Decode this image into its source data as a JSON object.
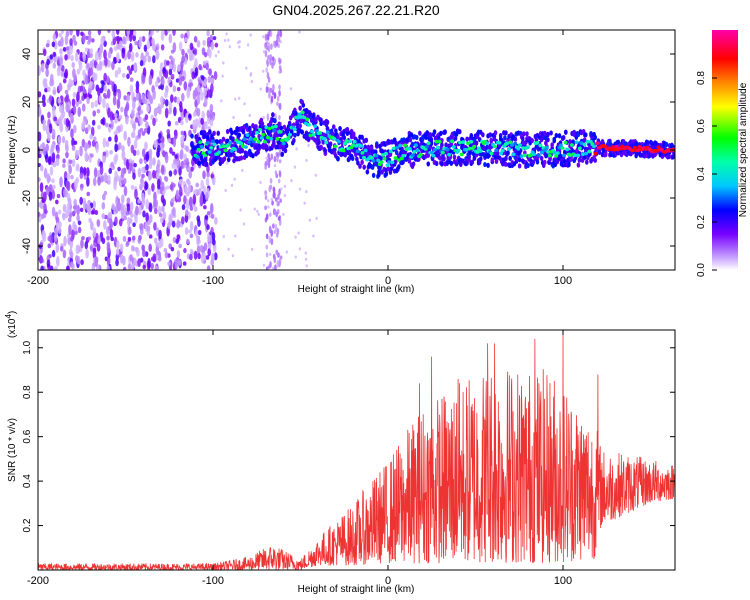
{
  "title": "GN04.2025.267.22.21.R20",
  "chart_data": [
    {
      "type": "heatmap",
      "name": "spectrogram",
      "xlabel": "Height of straight line (km)",
      "ylabel": "Frequency (Hz)",
      "xlim": [
        -200,
        164
      ],
      "ylim": [
        -50,
        50
      ],
      "xticks": [
        -200,
        -100,
        0,
        100
      ],
      "xtick_labels": [
        "-200",
        "-100",
        "0",
        "100"
      ],
      "yticks": [
        -40,
        -20,
        0,
        20,
        40
      ],
      "ytick_labels": [
        "-40",
        "-20",
        "0",
        "20",
        "40"
      ],
      "ridge": [
        {
          "x": -110,
          "f": 0
        },
        {
          "x": -90,
          "f": 2
        },
        {
          "x": -75,
          "f": 5
        },
        {
          "x": -65,
          "f": 8
        },
        {
          "x": -58,
          "f": 3
        },
        {
          "x": -50,
          "f": 15
        },
        {
          "x": -45,
          "f": 9
        },
        {
          "x": -35,
          "f": 5
        },
        {
          "x": -20,
          "f": 1
        },
        {
          "x": -5,
          "f": -5
        },
        {
          "x": 10,
          "f": 0
        },
        {
          "x": 40,
          "f": 1
        },
        {
          "x": 80,
          "f": 0
        },
        {
          "x": 120,
          "f": 1
        },
        {
          "x": 164,
          "f": 0
        }
      ],
      "colorbar": {
        "label": "Normalized spectral amplitude",
        "range": [
          0,
          1
        ],
        "ticks": [
          0.0,
          0.2,
          0.4,
          0.6,
          0.8
        ],
        "tick_labels": [
          "0.0",
          "0.2",
          "0.4",
          "0.6",
          "0.8"
        ]
      }
    },
    {
      "type": "line",
      "name": "snr",
      "xlabel": "Height of straight line (km)",
      "ylabel": "SNR (10 * v/v)",
      "scale_note": "(x10",
      "scale_exp": "4",
      "xlim": [
        -200,
        164
      ],
      "ylim": [
        0,
        1.08
      ],
      "xticks": [
        -200,
        -100,
        0,
        100
      ],
      "xtick_labels": [
        "-200",
        "-100",
        "0",
        "100"
      ],
      "yticks": [
        0.2,
        0.4,
        0.6,
        0.8,
        1.0
      ],
      "ytick_labels": [
        "0.2",
        "0.4",
        "0.6",
        "0.8",
        "1.0"
      ],
      "color": "#ee3333",
      "envelope": [
        {
          "x": -200,
          "lo": 0.0,
          "hi": 0.03
        },
        {
          "x": -100,
          "lo": 0.0,
          "hi": 0.03
        },
        {
          "x": -80,
          "lo": 0.0,
          "hi": 0.06
        },
        {
          "x": -66,
          "lo": 0.0,
          "hi": 0.12
        },
        {
          "x": -50,
          "lo": 0.0,
          "hi": 0.05
        },
        {
          "x": -40,
          "lo": 0.02,
          "hi": 0.15
        },
        {
          "x": -20,
          "lo": 0.02,
          "hi": 0.3
        },
        {
          "x": 0,
          "lo": 0.03,
          "hi": 0.5
        },
        {
          "x": 20,
          "lo": 0.03,
          "hi": 0.75
        },
        {
          "x": 40,
          "lo": 0.03,
          "hi": 0.85
        },
        {
          "x": 60,
          "lo": 0.03,
          "hi": 0.95
        },
        {
          "x": 80,
          "lo": 0.03,
          "hi": 0.92
        },
        {
          "x": 95,
          "lo": 0.03,
          "hi": 0.9
        },
        {
          "x": 118,
          "lo": 0.05,
          "hi": 0.7
        },
        {
          "x": 122,
          "lo": 0.2,
          "hi": 0.55
        },
        {
          "x": 150,
          "lo": 0.3,
          "hi": 0.5
        },
        {
          "x": 164,
          "lo": 0.32,
          "hi": 0.48
        }
      ],
      "peaks": [
        {
          "x": 18,
          "y": 0.84
        },
        {
          "x": 25,
          "y": 0.96
        },
        {
          "x": 40,
          "y": 0.86
        },
        {
          "x": 57,
          "y": 1.02
        },
        {
          "x": 61,
          "y": 1.02
        },
        {
          "x": 84,
          "y": 1.04
        },
        {
          "x": 100,
          "y": 1.06
        },
        {
          "x": 120,
          "y": 0.88
        }
      ]
    }
  ]
}
